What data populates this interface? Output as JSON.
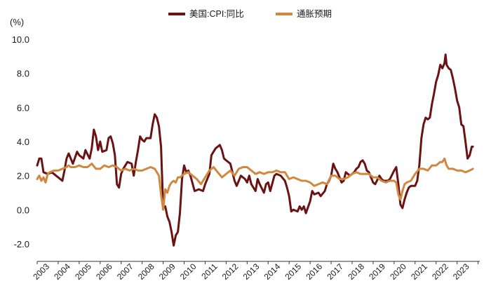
{
  "chart_data": {
    "type": "line",
    "title": "",
    "unit_label": "(%)",
    "ylim": [
      -2.0,
      10.0
    ],
    "y_ticks": [
      -2.0,
      0.0,
      2.0,
      4.0,
      6.0,
      8.0,
      10.0
    ],
    "y_tick_labels": [
      "-2.0",
      "0.0",
      "2.0",
      "4.0",
      "6.0",
      "8.0",
      "10.0"
    ],
    "x_range": [
      2003.0,
      2024.08
    ],
    "x_tick_labels": [
      "2003",
      "2004",
      "2005",
      "2006",
      "2007",
      "2008",
      "2009",
      "2010",
      "2011",
      "2012",
      "2013",
      "2014",
      "2015",
      "2016",
      "2017",
      "2018",
      "2019",
      "2020",
      "2021",
      "2022",
      "2023"
    ],
    "legend_position": "top-center",
    "grid": false,
    "series": [
      {
        "name": "美国:CPI:同比",
        "color": "#6b1212",
        "points": [
          [
            2003.0,
            2.6
          ],
          [
            2003.1,
            3.0
          ],
          [
            2003.2,
            3.0
          ],
          [
            2003.3,
            2.2
          ],
          [
            2003.5,
            2.1
          ],
          [
            2003.7,
            2.2
          ],
          [
            2003.9,
            2.0
          ],
          [
            2004.0,
            1.9
          ],
          [
            2004.2,
            1.7
          ],
          [
            2004.3,
            2.3
          ],
          [
            2004.4,
            3.0
          ],
          [
            2004.5,
            3.3
          ],
          [
            2004.7,
            2.7
          ],
          [
            2004.9,
            3.4
          ],
          [
            2005.0,
            3.2
          ],
          [
            2005.2,
            3.0
          ],
          [
            2005.3,
            3.5
          ],
          [
            2005.5,
            3.0
          ],
          [
            2005.6,
            3.6
          ],
          [
            2005.7,
            4.7
          ],
          [
            2005.8,
            4.3
          ],
          [
            2005.9,
            3.5
          ],
          [
            2006.0,
            4.0
          ],
          [
            2006.1,
            3.4
          ],
          [
            2006.3,
            3.5
          ],
          [
            2006.4,
            4.2
          ],
          [
            2006.5,
            4.3
          ],
          [
            2006.6,
            3.9
          ],
          [
            2006.7,
            3.2
          ],
          [
            2006.8,
            1.5
          ],
          [
            2006.9,
            1.3
          ],
          [
            2007.0,
            2.1
          ],
          [
            2007.1,
            2.4
          ],
          [
            2007.3,
            2.8
          ],
          [
            2007.5,
            2.7
          ],
          [
            2007.6,
            2.0
          ],
          [
            2007.7,
            2.8
          ],
          [
            2007.8,
            3.5
          ],
          [
            2007.9,
            4.3
          ],
          [
            2008.0,
            4.1
          ],
          [
            2008.1,
            4.0
          ],
          [
            2008.2,
            4.2
          ],
          [
            2008.4,
            4.2
          ],
          [
            2008.5,
            5.0
          ],
          [
            2008.6,
            5.6
          ],
          [
            2008.7,
            5.4
          ],
          [
            2008.8,
            4.9
          ],
          [
            2008.9,
            3.7
          ],
          [
            2009.0,
            0.1
          ],
          [
            2009.1,
            0.2
          ],
          [
            2009.2,
            -0.4
          ],
          [
            2009.3,
            -0.7
          ],
          [
            2009.4,
            -1.3
          ],
          [
            2009.5,
            -2.1
          ],
          [
            2009.6,
            -1.5
          ],
          [
            2009.7,
            -1.3
          ],
          [
            2009.8,
            -0.2
          ],
          [
            2009.9,
            1.8
          ],
          [
            2010.0,
            2.6
          ],
          [
            2010.1,
            2.2
          ],
          [
            2010.2,
            2.3
          ],
          [
            2010.3,
            2.0
          ],
          [
            2010.5,
            1.1
          ],
          [
            2010.7,
            1.2
          ],
          [
            2010.9,
            1.1
          ],
          [
            2011.0,
            1.5
          ],
          [
            2011.2,
            2.1
          ],
          [
            2011.3,
            3.2
          ],
          [
            2011.5,
            3.6
          ],
          [
            2011.7,
            3.8
          ],
          [
            2011.8,
            3.5
          ],
          [
            2011.9,
            3.0
          ],
          [
            2012.0,
            2.9
          ],
          [
            2012.2,
            2.7
          ],
          [
            2012.4,
            1.7
          ],
          [
            2012.5,
            1.4
          ],
          [
            2012.6,
            1.7
          ],
          [
            2012.7,
            2.0
          ],
          [
            2012.9,
            1.8
          ],
          [
            2013.0,
            1.6
          ],
          [
            2013.1,
            2.0
          ],
          [
            2013.2,
            1.5
          ],
          [
            2013.4,
            1.1
          ],
          [
            2013.5,
            1.8
          ],
          [
            2013.6,
            1.5
          ],
          [
            2013.8,
            1.0
          ],
          [
            2013.9,
            1.5
          ],
          [
            2014.0,
            1.6
          ],
          [
            2014.1,
            1.1
          ],
          [
            2014.3,
            2.0
          ],
          [
            2014.4,
            2.1
          ],
          [
            2014.6,
            2.0
          ],
          [
            2014.8,
            1.7
          ],
          [
            2014.9,
            1.3
          ],
          [
            2015.0,
            0.8
          ],
          [
            2015.1,
            -0.1
          ],
          [
            2015.2,
            0.0
          ],
          [
            2015.4,
            -0.1
          ],
          [
            2015.5,
            0.2
          ],
          [
            2015.6,
            0.0
          ],
          [
            2015.7,
            0.2
          ],
          [
            2015.8,
            -0.2
          ],
          [
            2016.0,
            0.5
          ],
          [
            2016.1,
            1.1
          ],
          [
            2016.2,
            0.9
          ],
          [
            2016.4,
            1.0
          ],
          [
            2016.5,
            0.8
          ],
          [
            2016.7,
            1.1
          ],
          [
            2016.8,
            1.5
          ],
          [
            2016.9,
            1.7
          ],
          [
            2017.0,
            2.0
          ],
          [
            2017.1,
            2.7
          ],
          [
            2017.2,
            2.4
          ],
          [
            2017.3,
            2.2
          ],
          [
            2017.4,
            1.9
          ],
          [
            2017.5,
            1.6
          ],
          [
            2017.6,
            1.7
          ],
          [
            2017.7,
            2.2
          ],
          [
            2017.9,
            2.0
          ],
          [
            2018.0,
            2.1
          ],
          [
            2018.1,
            2.2
          ],
          [
            2018.2,
            2.4
          ],
          [
            2018.3,
            2.5
          ],
          [
            2018.4,
            2.8
          ],
          [
            2018.5,
            2.9
          ],
          [
            2018.6,
            2.7
          ],
          [
            2018.7,
            2.3
          ],
          [
            2018.8,
            2.2
          ],
          [
            2018.9,
            1.9
          ],
          [
            2019.0,
            1.6
          ],
          [
            2019.1,
            1.5
          ],
          [
            2019.3,
            2.0
          ],
          [
            2019.4,
            1.8
          ],
          [
            2019.5,
            1.7
          ],
          [
            2019.7,
            1.7
          ],
          [
            2019.8,
            1.8
          ],
          [
            2020.0,
            2.3
          ],
          [
            2020.1,
            2.5
          ],
          [
            2020.2,
            1.5
          ],
          [
            2020.3,
            0.3
          ],
          [
            2020.4,
            0.1
          ],
          [
            2020.5,
            0.6
          ],
          [
            2020.6,
            1.0
          ],
          [
            2020.7,
            1.3
          ],
          [
            2020.8,
            1.4
          ],
          [
            2021.0,
            1.4
          ],
          [
            2021.1,
            1.7
          ],
          [
            2021.2,
            2.6
          ],
          [
            2021.3,
            4.2
          ],
          [
            2021.4,
            5.0
          ],
          [
            2021.5,
            5.4
          ],
          [
            2021.6,
            5.3
          ],
          [
            2021.7,
            5.4
          ],
          [
            2021.8,
            6.2
          ],
          [
            2021.9,
            6.8
          ],
          [
            2022.0,
            7.5
          ],
          [
            2022.1,
            7.9
          ],
          [
            2022.2,
            8.5
          ],
          [
            2022.3,
            8.3
          ],
          [
            2022.4,
            8.6
          ],
          [
            2022.45,
            9.1
          ],
          [
            2022.5,
            8.5
          ],
          [
            2022.6,
            8.3
          ],
          [
            2022.7,
            8.2
          ],
          [
            2022.8,
            7.7
          ],
          [
            2022.9,
            7.1
          ],
          [
            2023.0,
            6.4
          ],
          [
            2023.1,
            6.0
          ],
          [
            2023.2,
            5.0
          ],
          [
            2023.3,
            4.9
          ],
          [
            2023.4,
            4.0
          ],
          [
            2023.5,
            3.0
          ],
          [
            2023.6,
            3.2
          ],
          [
            2023.7,
            3.7
          ],
          [
            2023.75,
            3.7
          ]
        ]
      },
      {
        "name": "通胀预期",
        "color": "#d08840",
        "points": [
          [
            2003.0,
            1.8
          ],
          [
            2003.1,
            2.0
          ],
          [
            2003.2,
            1.7
          ],
          [
            2003.3,
            1.9
          ],
          [
            2003.4,
            1.6
          ],
          [
            2003.5,
            2.1
          ],
          [
            2003.6,
            2.2
          ],
          [
            2003.8,
            2.3
          ],
          [
            2004.0,
            2.3
          ],
          [
            2004.2,
            2.4
          ],
          [
            2004.4,
            2.5
          ],
          [
            2004.5,
            2.6
          ],
          [
            2004.6,
            2.5
          ],
          [
            2004.8,
            2.5
          ],
          [
            2005.0,
            2.6
          ],
          [
            2005.2,
            2.5
          ],
          [
            2005.4,
            2.5
          ],
          [
            2005.6,
            2.7
          ],
          [
            2005.8,
            2.4
          ],
          [
            2006.0,
            2.4
          ],
          [
            2006.2,
            2.6
          ],
          [
            2006.4,
            2.5
          ],
          [
            2006.6,
            2.6
          ],
          [
            2006.8,
            2.5
          ],
          [
            2007.0,
            2.3
          ],
          [
            2007.2,
            2.4
          ],
          [
            2007.4,
            2.3
          ],
          [
            2007.6,
            2.4
          ],
          [
            2007.8,
            2.3
          ],
          [
            2008.0,
            2.3
          ],
          [
            2008.2,
            2.4
          ],
          [
            2008.4,
            2.5
          ],
          [
            2008.6,
            2.4
          ],
          [
            2008.8,
            2.0
          ],
          [
            2008.9,
            0.9
          ],
          [
            2009.0,
            0.0
          ],
          [
            2009.1,
            1.2
          ],
          [
            2009.2,
            1.0
          ],
          [
            2009.3,
            1.4
          ],
          [
            2009.4,
            1.6
          ],
          [
            2009.5,
            1.7
          ],
          [
            2009.6,
            1.6
          ],
          [
            2009.7,
            1.9
          ],
          [
            2009.8,
            1.9
          ],
          [
            2010.0,
            2.1
          ],
          [
            2010.2,
            2.2
          ],
          [
            2010.4,
            2.0
          ],
          [
            2010.6,
            1.8
          ],
          [
            2010.8,
            1.5
          ],
          [
            2011.0,
            1.9
          ],
          [
            2011.2,
            2.3
          ],
          [
            2011.4,
            2.5
          ],
          [
            2011.6,
            2.2
          ],
          [
            2011.8,
            1.9
          ],
          [
            2012.0,
            2.1
          ],
          [
            2012.2,
            2.3
          ],
          [
            2012.4,
            2.0
          ],
          [
            2012.6,
            2.4
          ],
          [
            2012.8,
            2.5
          ],
          [
            2013.0,
            2.5
          ],
          [
            2013.2,
            2.3
          ],
          [
            2013.4,
            2.1
          ],
          [
            2013.6,
            2.2
          ],
          [
            2013.8,
            2.1
          ],
          [
            2014.0,
            2.2
          ],
          [
            2014.2,
            2.2
          ],
          [
            2014.4,
            2.3
          ],
          [
            2014.6,
            2.2
          ],
          [
            2014.8,
            2.2
          ],
          [
            2015.0,
            1.8
          ],
          [
            2015.2,
            1.9
          ],
          [
            2015.4,
            1.8
          ],
          [
            2015.6,
            1.7
          ],
          [
            2015.8,
            1.7
          ],
          [
            2016.0,
            1.6
          ],
          [
            2016.2,
            1.4
          ],
          [
            2016.4,
            1.5
          ],
          [
            2016.6,
            1.6
          ],
          [
            2016.8,
            1.5
          ],
          [
            2017.0,
            2.0
          ],
          [
            2017.2,
            2.0
          ],
          [
            2017.4,
            1.8
          ],
          [
            2017.6,
            1.8
          ],
          [
            2017.8,
            1.9
          ],
          [
            2018.0,
            2.1
          ],
          [
            2018.2,
            2.2
          ],
          [
            2018.4,
            2.1
          ],
          [
            2018.6,
            2.1
          ],
          [
            2018.8,
            2.1
          ],
          [
            2019.0,
            1.9
          ],
          [
            2019.2,
            1.9
          ],
          [
            2019.4,
            1.7
          ],
          [
            2019.6,
            1.6
          ],
          [
            2019.8,
            1.7
          ],
          [
            2020.0,
            1.7
          ],
          [
            2020.1,
            1.6
          ],
          [
            2020.2,
            0.9
          ],
          [
            2020.3,
            0.6
          ],
          [
            2020.4,
            1.1
          ],
          [
            2020.5,
            1.5
          ],
          [
            2020.6,
            1.6
          ],
          [
            2020.8,
            1.7
          ],
          [
            2021.0,
            2.1
          ],
          [
            2021.2,
            2.4
          ],
          [
            2021.4,
            2.4
          ],
          [
            2021.6,
            2.3
          ],
          [
            2021.8,
            2.6
          ],
          [
            2022.0,
            2.6
          ],
          [
            2022.2,
            2.8
          ],
          [
            2022.3,
            2.8
          ],
          [
            2022.4,
            3.0
          ],
          [
            2022.5,
            2.6
          ],
          [
            2022.6,
            2.4
          ],
          [
            2022.8,
            2.4
          ],
          [
            2023.0,
            2.3
          ],
          [
            2023.2,
            2.3
          ],
          [
            2023.4,
            2.2
          ],
          [
            2023.6,
            2.3
          ],
          [
            2023.75,
            2.4
          ]
        ]
      }
    ]
  }
}
